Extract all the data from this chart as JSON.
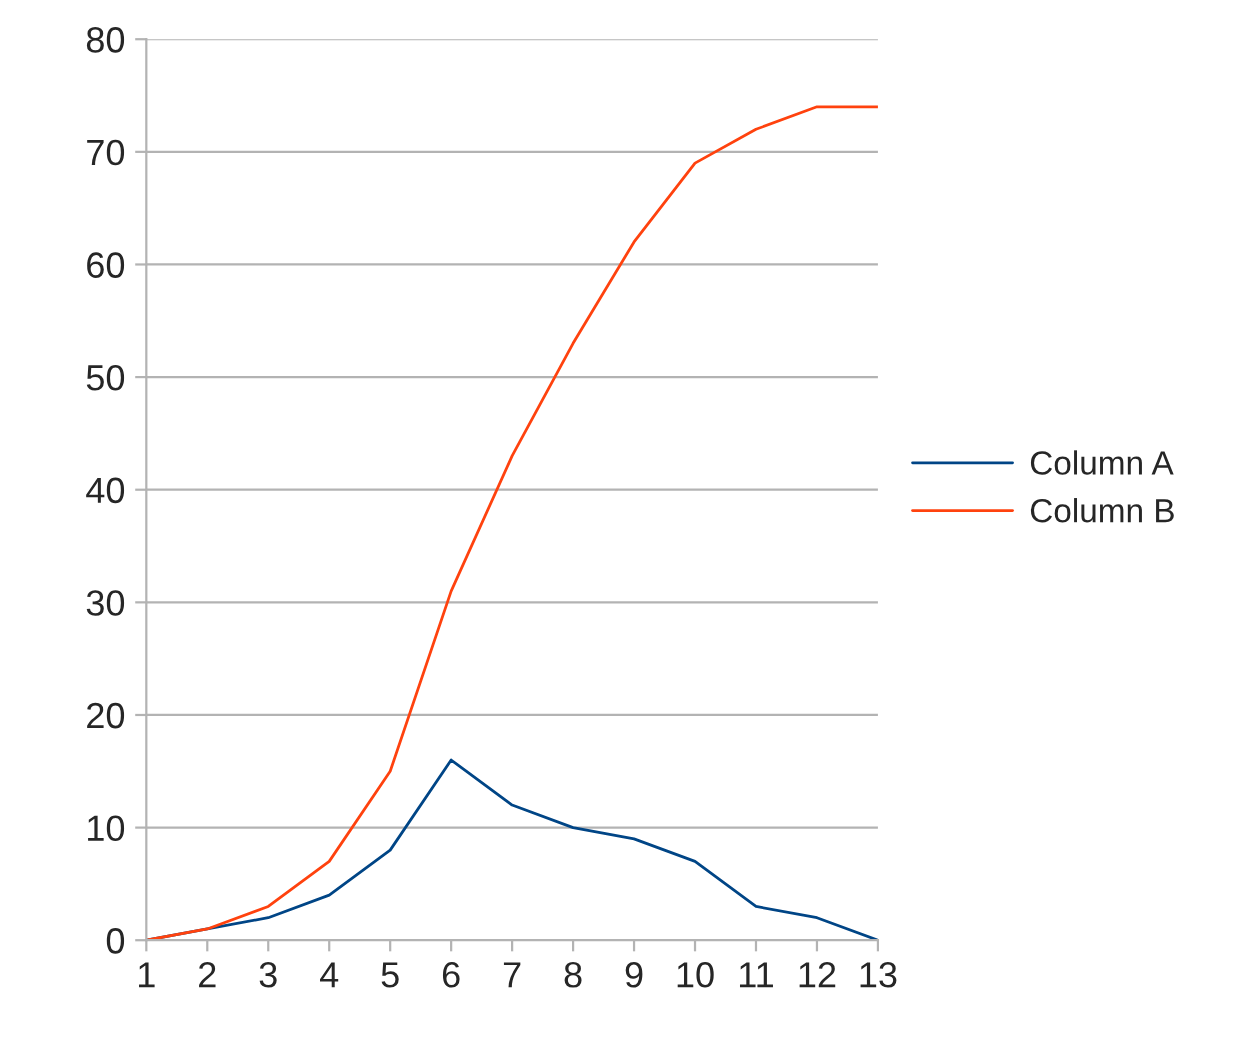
{
  "chart_data": {
    "type": "line",
    "categories": [
      "1",
      "2",
      "3",
      "4",
      "5",
      "6",
      "7",
      "8",
      "9",
      "10",
      "11",
      "12",
      "13"
    ],
    "series": [
      {
        "name": "Column A",
        "color": "#004586",
        "values": [
          0,
          1,
          2,
          4,
          8,
          16,
          12,
          10,
          9,
          7,
          3,
          2,
          0
        ]
      },
      {
        "name": "Column B",
        "color": "#ff420e",
        "values": [
          0,
          1,
          3,
          7,
          15,
          31,
          43,
          53,
          62,
          69,
          72,
          74,
          74
        ]
      }
    ],
    "ylim": [
      0,
      80
    ],
    "yticks": [
      0,
      10,
      20,
      30,
      40,
      50,
      60,
      70,
      80
    ],
    "grid": "y",
    "legend": "right",
    "marker": "none",
    "line_style": "solid"
  }
}
